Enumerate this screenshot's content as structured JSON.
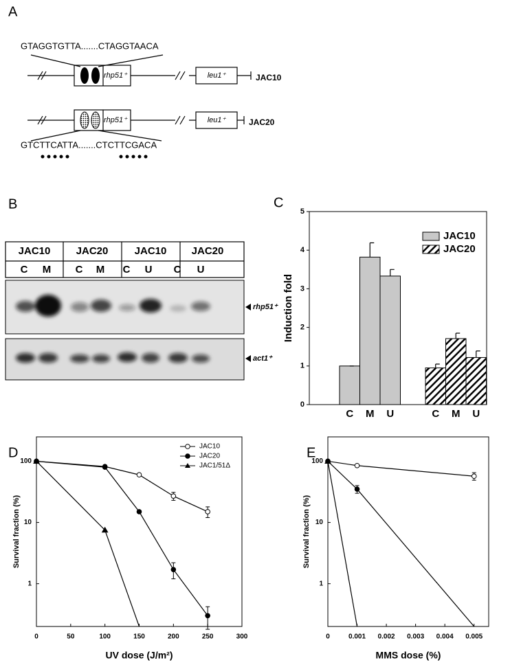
{
  "panel_labels": [
    "A",
    "B",
    "C",
    "D",
    "E"
  ],
  "diagram": {
    "rows": [
      {
        "sequence": "GTAGGTGTTA.......CTAGGTAACA",
        "gene": "rhp51⁺",
        "marker": "leu1⁺",
        "strain": "JAC10"
      },
      {
        "sequence": "GTCTTCATTA.......CTCTTCGACA",
        "gene": "rhp51⁺",
        "marker": "leu1⁺",
        "strain": "JAC20"
      }
    ]
  },
  "blot": {
    "strains": [
      "JAC10",
      "JAC20",
      "JAC10",
      "JAC20"
    ],
    "lanes": [
      "C",
      "M",
      "C",
      "M",
      "C",
      "U",
      "C",
      "U"
    ],
    "probes": [
      "rhp51⁺",
      "act1⁺"
    ]
  },
  "chart_data": [
    {
      "type": "bar",
      "ylabel": "Induction fold",
      "categories": [
        "C",
        "M",
        "U"
      ],
      "series": [
        {
          "name": "JAC10",
          "color": "#c8c8c8",
          "values": [
            1,
            3.82,
            3.33
          ],
          "errors": [
            0,
            0.37,
            0.17
          ]
        },
        {
          "name": "JAC20",
          "color": "#ffffff",
          "hatch": true,
          "values": [
            0.95,
            1.71,
            1.22
          ],
          "errors": [
            0.1,
            0.14,
            0.17
          ]
        }
      ],
      "ylim": [
        0,
        5
      ],
      "yticks": [
        0,
        1,
        2,
        3,
        4,
        5
      ],
      "legend": "upper right"
    },
    {
      "type": "line",
      "xlabel": "UV dose (J/m²)",
      "ylabel": "Survival fraction (%)",
      "log_y": true,
      "xlim": [
        0,
        300
      ],
      "xticks": [
        0,
        50,
        100,
        150,
        200,
        250,
        300
      ],
      "ylim": [
        0.2,
        250
      ],
      "yticks": [
        1,
        10,
        100
      ],
      "legend": "upper right",
      "series": [
        {
          "name": "JAC10",
          "color": "#000000",
          "marker": "open-circle",
          "x": [
            0,
            100,
            150,
            200,
            250
          ],
          "values": [
            100,
            82,
            60,
            27,
            15
          ],
          "errors": [
            0,
            0,
            0,
            4,
            3
          ]
        },
        {
          "name": "JAC20",
          "color": "#000000",
          "marker": "circle",
          "x": [
            0,
            100,
            150,
            200,
            250
          ],
          "values": [
            100,
            80,
            15,
            1.7,
            0.3
          ],
          "errors": [
            0,
            0,
            0,
            0.5,
            0.12
          ]
        },
        {
          "name": "JAC1/51Δ",
          "color": "#000000",
          "marker": "triangle",
          "x": [
            0,
            100,
            150
          ],
          "values": [
            100,
            7.5,
            0.2
          ]
        }
      ]
    },
    {
      "type": "line",
      "xlabel": "MMS dose (%)",
      "ylabel": "Survival fraction (%)",
      "log_y": true,
      "xlim": [
        0,
        0.0055
      ],
      "xticks": [
        0,
        0.001,
        0.002,
        0.003,
        0.004,
        0.005
      ],
      "ylim": [
        0.2,
        250
      ],
      "yticks": [
        1,
        10,
        100
      ],
      "series": [
        {
          "color": "#000000",
          "marker": "open-circle",
          "x": [
            0,
            0.001,
            0.005
          ],
          "values": [
            100,
            85,
            57
          ],
          "errors": [
            0,
            0,
            8
          ]
        },
        {
          "color": "#000000",
          "marker": "circle",
          "x": [
            0,
            0.001,
            0.005
          ],
          "values": [
            100,
            35,
            0.2
          ],
          "errors": [
            0,
            5,
            0
          ]
        },
        {
          "color": "#000000",
          "marker": "triangle",
          "x": [
            0,
            0.001
          ],
          "values": [
            100,
            0.2
          ]
        }
      ]
    }
  ]
}
